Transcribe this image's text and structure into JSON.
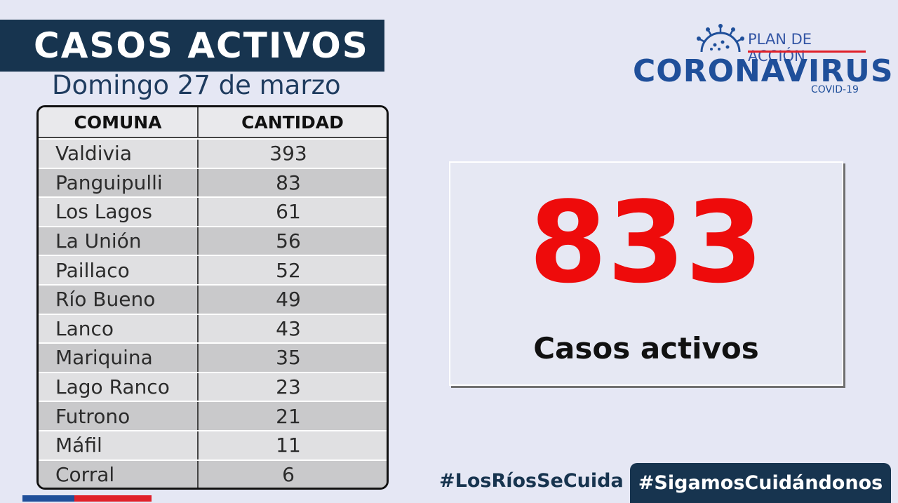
{
  "header": {
    "title": "CASOS ACTIVOS",
    "subtitle": "Domingo 27 de marzo"
  },
  "table": {
    "columns": [
      "COMUNA",
      "CANTIDAD"
    ],
    "rows": [
      {
        "comuna": "Valdivia",
        "cantidad": "393"
      },
      {
        "comuna": "Panguipulli",
        "cantidad": "83"
      },
      {
        "comuna": "Los Lagos",
        "cantidad": "61"
      },
      {
        "comuna": "La Unión",
        "cantidad": "56"
      },
      {
        "comuna": "Paillaco",
        "cantidad": "52"
      },
      {
        "comuna": "Río Bueno",
        "cantidad": "49"
      },
      {
        "comuna": "Lanco",
        "cantidad": "43"
      },
      {
        "comuna": "Mariquina",
        "cantidad": "35"
      },
      {
        "comuna": "Lago Ranco",
        "cantidad": "23"
      },
      {
        "comuna": "Futrono",
        "cantidad": "21"
      },
      {
        "comuna": "Máfil",
        "cantidad": "11"
      },
      {
        "comuna": "Corral",
        "cantidad": "6"
      }
    ]
  },
  "logo": {
    "plan": "PLAN DE ACCIÓN",
    "name": "CORONAVIRUS",
    "sub": "COVID-19",
    "icon": "virus-icon"
  },
  "summary": {
    "total": "833",
    "label": "Casos activos"
  },
  "footer": {
    "hashtag_left": "#LosRíosSeCuida",
    "hashtag_right": "#SigamosCuidándonos"
  },
  "colors": {
    "navy": "#17344f",
    "red": "#ee0b0b",
    "brand_blue": "#1f4f9a",
    "background": "#e5e7f4"
  }
}
